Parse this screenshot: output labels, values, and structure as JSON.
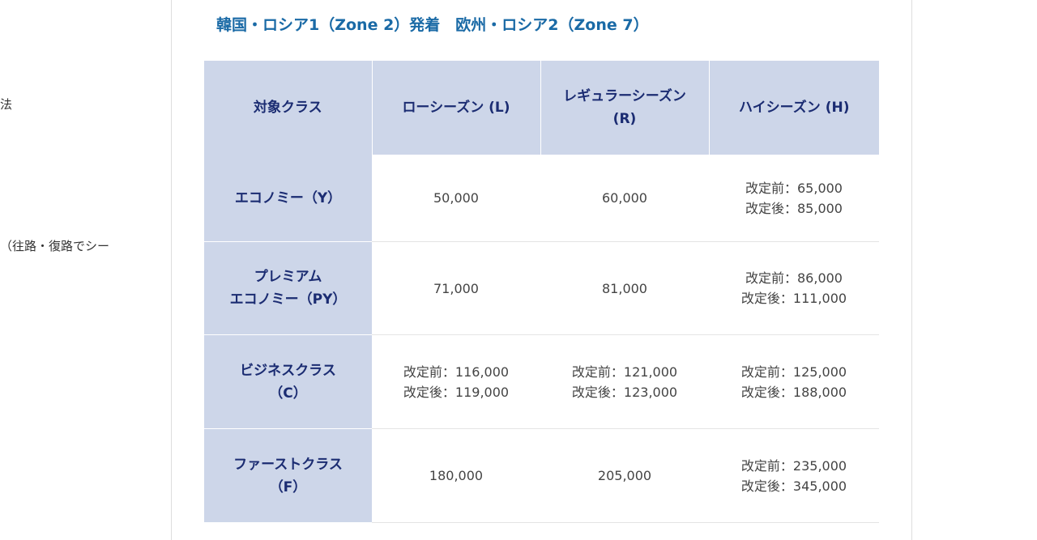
{
  "sidebar": {
    "fragment_1": "法",
    "fragment_2": "（往路・復路でシー"
  },
  "section": {
    "heading": "韓国・ロシア1（Zone 2）発着　欧州・ロシア2（Zone 7）"
  },
  "table": {
    "headers": {
      "class": "対象クラス",
      "low": "ローシーズン (L)",
      "regular_line1": "レギュラーシーズン",
      "regular_line2": "(R)",
      "high": "ハイシーズン (H)"
    },
    "rows": [
      {
        "class_line1": "エコノミー（Y）",
        "class_line2": "",
        "low_line1": "50,000",
        "low_line2": "",
        "regular_line1": "60,000",
        "regular_line2": "",
        "high_line1": "改定前：65,000",
        "high_line2": "改定後：85,000"
      },
      {
        "class_line1": "プレミアム",
        "class_line2": "エコノミー（PY）",
        "low_line1": "71,000",
        "low_line2": "",
        "regular_line1": "81,000",
        "regular_line2": "",
        "high_line1": "改定前：86,000",
        "high_line2": "改定後：111,000"
      },
      {
        "class_line1": "ビジネスクラス",
        "class_line2": "（C）",
        "low_line1": "改定前：116,000",
        "low_line2": "改定後：119,000",
        "regular_line1": "改定前：121,000",
        "regular_line2": "改定後：123,000",
        "high_line1": "改定前：125,000",
        "high_line2": "改定後：188,000"
      },
      {
        "class_line1": "ファーストクラス",
        "class_line2": "（F）",
        "low_line1": "180,000",
        "low_line2": "",
        "regular_line1": "205,000",
        "regular_line2": "",
        "high_line1": "改定前：235,000",
        "high_line2": "改定後：345,000"
      }
    ]
  },
  "colors": {
    "heading": "#1a6aa6",
    "header_bg": "#cdd6e9",
    "header_text": "#1b2c72",
    "body_text": "#444444"
  }
}
